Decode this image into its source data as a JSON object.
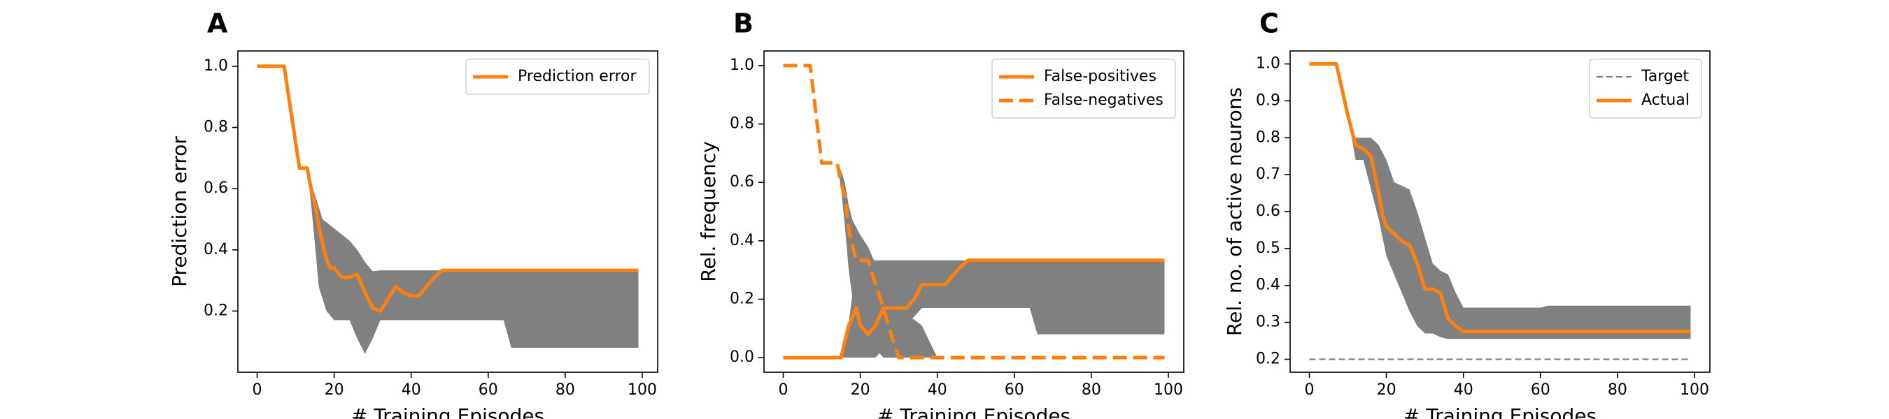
{
  "colors": {
    "line": "#ff7f0e",
    "band": "#808080",
    "target": "#808080"
  },
  "chart_data": [
    {
      "panel": "A",
      "type": "line",
      "xlabel": "# Training Episodes",
      "ylabel": "Prediction error",
      "xlim": [
        -5,
        104
      ],
      "ylim": [
        0.0,
        1.05
      ],
      "xticks": [
        0,
        20,
        40,
        60,
        80,
        100
      ],
      "yticks": [
        0.2,
        0.4,
        0.6,
        0.8,
        1.0
      ],
      "legend_position": "top-right",
      "series": [
        {
          "name": "Prediction error",
          "style": "solid",
          "x": [
            0,
            7,
            11,
            13,
            14,
            15,
            16,
            17,
            18,
            19,
            20,
            22,
            24,
            26,
            28,
            30,
            32,
            34,
            36,
            38,
            40,
            42,
            44,
            46,
            48,
            60,
            80,
            99
          ],
          "y": [
            1.0,
            1.0,
            0.667,
            0.667,
            0.6,
            0.55,
            0.48,
            0.42,
            0.37,
            0.34,
            0.34,
            0.31,
            0.31,
            0.32,
            0.26,
            0.21,
            0.2,
            0.24,
            0.28,
            0.26,
            0.25,
            0.25,
            0.28,
            0.31,
            0.333,
            0.333,
            0.333,
            0.333
          ]
        }
      ],
      "bands": [
        {
          "x": [
            11,
            13,
            14,
            15,
            16,
            17,
            18,
            20,
            22,
            24,
            26,
            28,
            30,
            32,
            34,
            36,
            40,
            48,
            64,
            66,
            80,
            99
          ],
          "upper": [
            0.667,
            0.667,
            0.62,
            0.58,
            0.54,
            0.5,
            0.49,
            0.47,
            0.45,
            0.43,
            0.4,
            0.36,
            0.33,
            0.333,
            0.333,
            0.333,
            0.333,
            0.333,
            0.333,
            0.333,
            0.333,
            0.333
          ],
          "lower": [
            0.667,
            0.667,
            0.55,
            0.42,
            0.28,
            0.24,
            0.2,
            0.17,
            0.17,
            0.17,
            0.11,
            0.06,
            0.11,
            0.17,
            0.17,
            0.17,
            0.17,
            0.17,
            0.17,
            0.08,
            0.08,
            0.08
          ]
        }
      ]
    },
    {
      "panel": "B",
      "type": "line",
      "xlabel": "# Training Episodes",
      "ylabel": "Rel. frequency",
      "xlim": [
        -5,
        104
      ],
      "ylim": [
        -0.05,
        1.05
      ],
      "xticks": [
        0,
        20,
        40,
        60,
        80,
        100
      ],
      "yticks": [
        0.0,
        0.2,
        0.4,
        0.6,
        0.8,
        1.0
      ],
      "legend_position": "top-right",
      "series": [
        {
          "name": "False-positives",
          "style": "solid",
          "x": [
            0,
            15,
            17,
            19,
            20,
            22,
            24,
            26,
            28,
            30,
            32,
            34,
            36,
            38,
            40,
            42,
            44,
            46,
            48,
            60,
            80,
            99
          ],
          "y": [
            0.0,
            0.0,
            0.11,
            0.17,
            0.11,
            0.08,
            0.11,
            0.17,
            0.17,
            0.17,
            0.17,
            0.2,
            0.25,
            0.25,
            0.25,
            0.25,
            0.28,
            0.31,
            0.333,
            0.333,
            0.333,
            0.333
          ]
        },
        {
          "name": "False-negatives",
          "style": "dashed",
          "x": [
            0,
            7,
            10,
            11,
            14,
            15,
            16,
            17,
            18,
            19,
            20,
            22,
            24,
            26,
            28,
            29,
            30,
            31,
            40,
            60,
            80,
            99
          ],
          "y": [
            1.0,
            1.0,
            0.667,
            0.667,
            0.667,
            0.6,
            0.55,
            0.44,
            0.38,
            0.333,
            0.333,
            0.333,
            0.25,
            0.17,
            0.08,
            0.04,
            0.0,
            0.0,
            0.0,
            0.0,
            0.0,
            0.0
          ]
        }
      ],
      "bands": [
        {
          "x": [
            14,
            15,
            16,
            17,
            18,
            20,
            22,
            24,
            26,
            28,
            30,
            32,
            36,
            40
          ],
          "upper": [
            0.667,
            0.64,
            0.6,
            0.52,
            0.47,
            0.42,
            0.38,
            0.32,
            0.26,
            0.22,
            0.17,
            0.15,
            0.11,
            0.0
          ],
          "lower": [
            0.667,
            0.58,
            0.45,
            0.3,
            0.2,
            0.12,
            0.06,
            0.03,
            0.0,
            0.0,
            0.0,
            0.0,
            0.0,
            0.0
          ]
        },
        {
          "x": [
            15,
            17,
            18,
            20,
            22,
            24,
            26,
            28,
            30,
            32,
            34,
            36,
            38,
            40,
            46,
            48,
            64,
            66,
            80,
            99
          ],
          "upper": [
            0.0,
            0.12,
            0.22,
            0.3,
            0.333,
            0.333,
            0.333,
            0.333,
            0.333,
            0.333,
            0.333,
            0.333,
            0.333,
            0.333,
            0.333,
            0.333,
            0.333,
            0.333,
            0.333,
            0.333
          ],
          "lower": [
            0.0,
            0.0,
            0.0,
            0.0,
            0.0,
            0.0,
            0.03,
            0.06,
            0.09,
            0.12,
            0.14,
            0.17,
            0.17,
            0.17,
            0.17,
            0.17,
            0.17,
            0.08,
            0.08,
            0.08
          ]
        }
      ]
    },
    {
      "panel": "C",
      "type": "line",
      "xlabel": "# Training Episodes",
      "ylabel": "Rel. no. of active neurons",
      "xlim": [
        -5,
        104
      ],
      "ylim": [
        0.165,
        1.035
      ],
      "xticks": [
        0,
        20,
        40,
        60,
        80,
        100
      ],
      "yticks": [
        0.2,
        0.3,
        0.4,
        0.5,
        0.6,
        0.7,
        0.8,
        0.9,
        1.0
      ],
      "legend_position": "top-right",
      "series": [
        {
          "name": "Target",
          "style": "dashed-thin",
          "color": "#808080",
          "x": [
            0,
            99
          ],
          "y": [
            0.2,
            0.2
          ]
        },
        {
          "name": "Actual",
          "style": "solid",
          "x": [
            0,
            7,
            10,
            12,
            14,
            16,
            17,
            18,
            19,
            20,
            22,
            24,
            26,
            28,
            30,
            32,
            34,
            36,
            38,
            40,
            42,
            60,
            80,
            99
          ],
          "y": [
            1.0,
            1.0,
            0.86,
            0.78,
            0.77,
            0.75,
            0.7,
            0.65,
            0.59,
            0.56,
            0.54,
            0.52,
            0.51,
            0.46,
            0.39,
            0.39,
            0.38,
            0.31,
            0.29,
            0.275,
            0.275,
            0.275,
            0.275,
            0.275
          ]
        }
      ],
      "bands": [
        {
          "x": [
            10,
            12,
            14,
            16,
            18,
            20,
            22,
            24,
            26,
            28,
            30,
            32,
            34,
            36,
            38,
            40,
            42,
            60,
            62,
            80,
            99
          ],
          "upper": [
            0.86,
            0.8,
            0.8,
            0.8,
            0.78,
            0.74,
            0.68,
            0.67,
            0.66,
            0.6,
            0.53,
            0.46,
            0.44,
            0.43,
            0.38,
            0.34,
            0.34,
            0.34,
            0.345,
            0.345,
            0.345
          ],
          "lower": [
            0.86,
            0.74,
            0.74,
            0.66,
            0.58,
            0.48,
            0.43,
            0.38,
            0.33,
            0.29,
            0.27,
            0.27,
            0.26,
            0.255,
            0.255,
            0.255,
            0.255,
            0.255,
            0.255,
            0.255,
            0.255
          ]
        }
      ]
    }
  ]
}
